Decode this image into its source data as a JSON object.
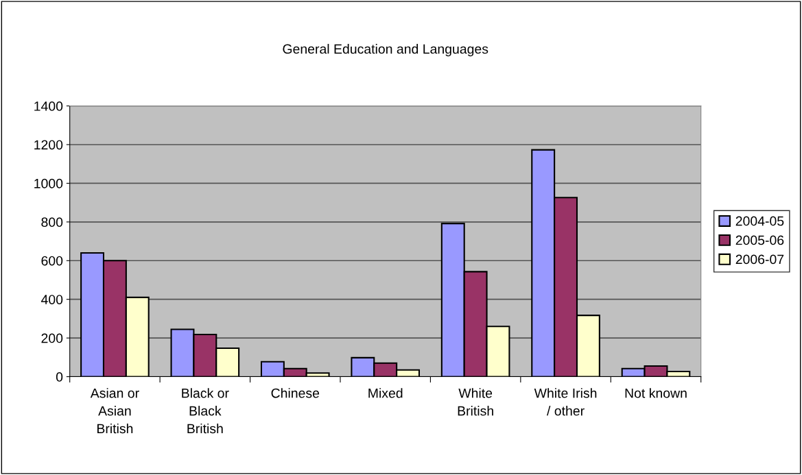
{
  "chart_data": {
    "type": "bar",
    "title": "General Education and Languages",
    "categories": [
      "Asian or\nAsian\nBritish",
      "Black or\nBlack\nBritish",
      "Chinese",
      "Mixed",
      "White\nBritish",
      "White Irish\n/ other",
      "Not known"
    ],
    "series": [
      {
        "name": "2004-05",
        "color": "#9999ff",
        "values": [
          640,
          245,
          77,
          98,
          792,
          1173,
          42
        ]
      },
      {
        "name": "2005-06",
        "color": "#993366",
        "values": [
          600,
          218,
          42,
          70,
          543,
          926,
          55
        ]
      },
      {
        "name": "2006-07",
        "color": "#ffffcc",
        "values": [
          410,
          147,
          19,
          35,
          260,
          317,
          27
        ]
      }
    ],
    "ylim": [
      0,
      1400
    ],
    "yticks": [
      0,
      200,
      400,
      600,
      800,
      1000,
      1200,
      1400
    ],
    "grid": "y",
    "legend": "right"
  }
}
